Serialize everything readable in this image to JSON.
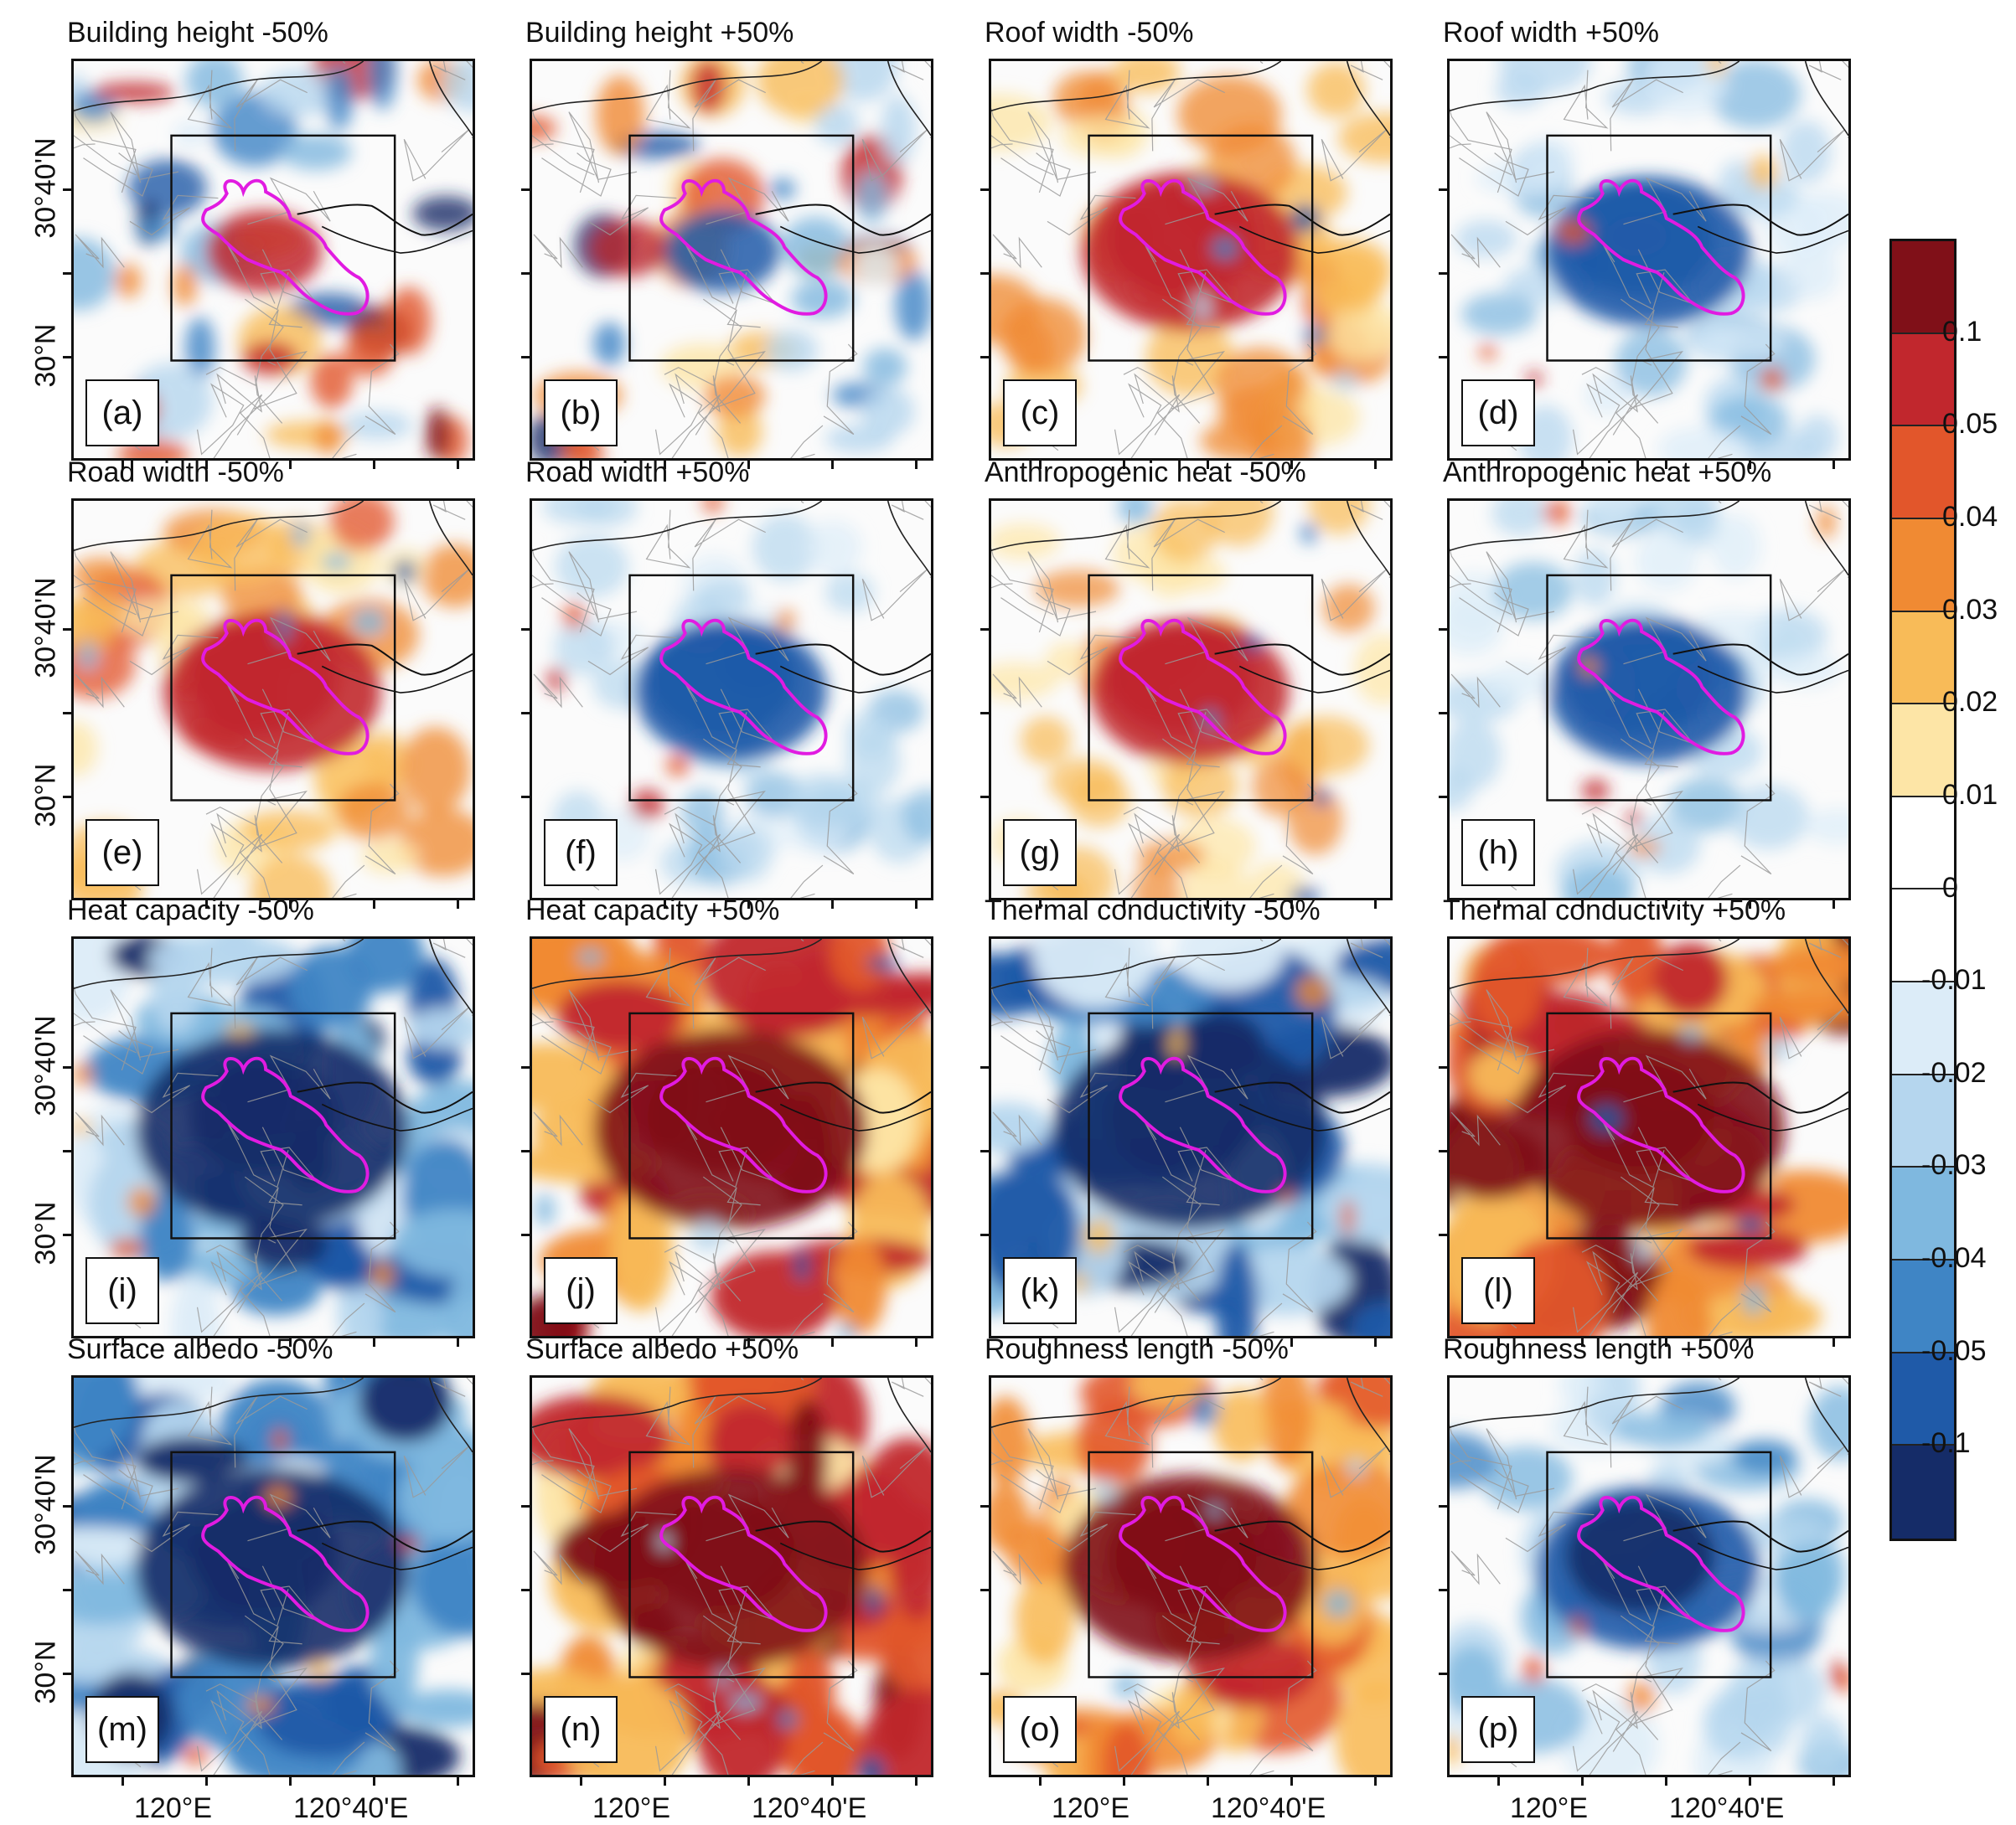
{
  "panels": [
    {
      "id": "a",
      "title": "Building height -50%",
      "mode": "mixed",
      "intensity": 0.55
    },
    {
      "id": "b",
      "title": "Building height +50%",
      "mode": "mixed",
      "intensity": 0.5
    },
    {
      "id": "c",
      "title": "Roof width -50%",
      "mode": "warm",
      "intensity": 0.55
    },
    {
      "id": "d",
      "title": "Roof width +50%",
      "mode": "cool",
      "intensity": 0.45
    },
    {
      "id": "e",
      "title": "Road width -50%",
      "mode": "warm",
      "intensity": 0.55
    },
    {
      "id": "f",
      "title": "Road width +50%",
      "mode": "cool",
      "intensity": 0.35
    },
    {
      "id": "g",
      "title": "Anthropogenic heat -50%",
      "mode": "warm",
      "intensity": 0.4
    },
    {
      "id": "h",
      "title": "Anthropogenic heat +50%",
      "mode": "cool",
      "intensity": 0.4
    },
    {
      "id": "i",
      "title": "Heat capacity -50%",
      "mode": "cool",
      "intensity": 1.0
    },
    {
      "id": "j",
      "title": "Heat capacity +50%",
      "mode": "warm",
      "intensity": 1.0
    },
    {
      "id": "k",
      "title": "Thermal conductivity -50%",
      "mode": "cool",
      "intensity": 1.0
    },
    {
      "id": "l",
      "title": "Thermal conductivity +50%",
      "mode": "warm",
      "intensity": 1.0
    },
    {
      "id": "m",
      "title": "Surface albedo -50%",
      "mode": "cool",
      "intensity": 1.0
    },
    {
      "id": "n",
      "title": "Surface albedo +50%",
      "mode": "warm",
      "intensity": 1.0
    },
    {
      "id": "o",
      "title": "Roughness length -50%",
      "mode": "warm",
      "intensity": 0.85
    },
    {
      "id": "p",
      "title": "Roughness length +50%",
      "mode": "cool",
      "intensity": 0.6
    }
  ],
  "axes": {
    "lat_labels": [
      "30°40'N",
      "30°N"
    ],
    "lon_labels": [
      "120°E",
      "120°40'E"
    ]
  },
  "colorbar": {
    "labels": [
      "0.1",
      "0.05",
      "0.04",
      "0.03",
      "0.02",
      "0.01",
      "0",
      "-0.01",
      "-0.02",
      "-0.03",
      "-0.04",
      "-0.05",
      "-0.1"
    ],
    "colors": [
      "#801018",
      "#c1272d",
      "#e2562b",
      "#f08a33",
      "#f8bb58",
      "#fde5a6",
      "#ffffff",
      "#ffffff",
      "#dcecf8",
      "#b5d6ee",
      "#7fb8df",
      "#3f85c5",
      "#1f5aa8",
      "#152c68"
    ]
  }
}
